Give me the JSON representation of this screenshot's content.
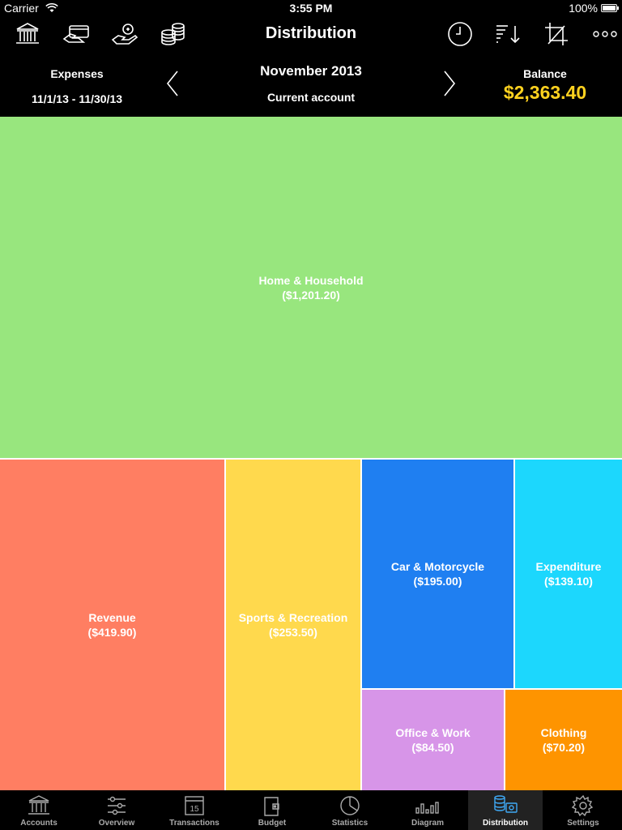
{
  "status": {
    "carrier": "Carrier",
    "time": "3:55 PM",
    "battery": "100%"
  },
  "toolbar": {
    "title": "Distribution",
    "left_icons": [
      "bank-icon",
      "card-icon",
      "hand-coin-icon",
      "coins-icon"
    ],
    "right_icons": [
      "clock-icon",
      "sort-icon",
      "crop-icon",
      "more-icon"
    ]
  },
  "header": {
    "left_label": "Expenses",
    "date_range": "11/1/13 - 11/30/13",
    "period": "November 2013",
    "account": "Current account",
    "balance_label": "Balance",
    "balance_value": "$2,363.40"
  },
  "categories": [
    {
      "name": "Home & Household",
      "amount": "($1,201.20)",
      "value": 1201.2,
      "color": "#98e67e"
    },
    {
      "name": "Revenue",
      "amount": "($419.90)",
      "value": 419.9,
      "color": "#ff7e62"
    },
    {
      "name": "Sports & Recreation",
      "amount": "($253.50)",
      "value": 253.5,
      "color": "#ffd94d"
    },
    {
      "name": "Car & Motorcycle",
      "amount": "($195.00)",
      "value": 195.0,
      "color": "#1f7ff1"
    },
    {
      "name": "Expenditure",
      "amount": "($139.10)",
      "value": 139.1,
      "color": "#1cd7fd"
    },
    {
      "name": "Office & Work",
      "amount": "($84.50)",
      "value": 84.5,
      "color": "#d795e8"
    },
    {
      "name": "Clothing",
      "amount": "($70.20)",
      "value": 70.2,
      "color": "#fe9400"
    }
  ],
  "tabs": [
    {
      "label": "Accounts",
      "icon": "bank-icon"
    },
    {
      "label": "Overview",
      "icon": "sliders-icon"
    },
    {
      "label": "Transactions",
      "icon": "calendar-icon",
      "calendar_day": "15"
    },
    {
      "label": "Budget",
      "icon": "wallet-icon"
    },
    {
      "label": "Statistics",
      "icon": "pie-icon"
    },
    {
      "label": "Diagram",
      "icon": "bars-icon"
    },
    {
      "label": "Distribution",
      "icon": "distribution-icon",
      "active": true
    },
    {
      "label": "Settings",
      "icon": "gear-icon"
    }
  ]
}
